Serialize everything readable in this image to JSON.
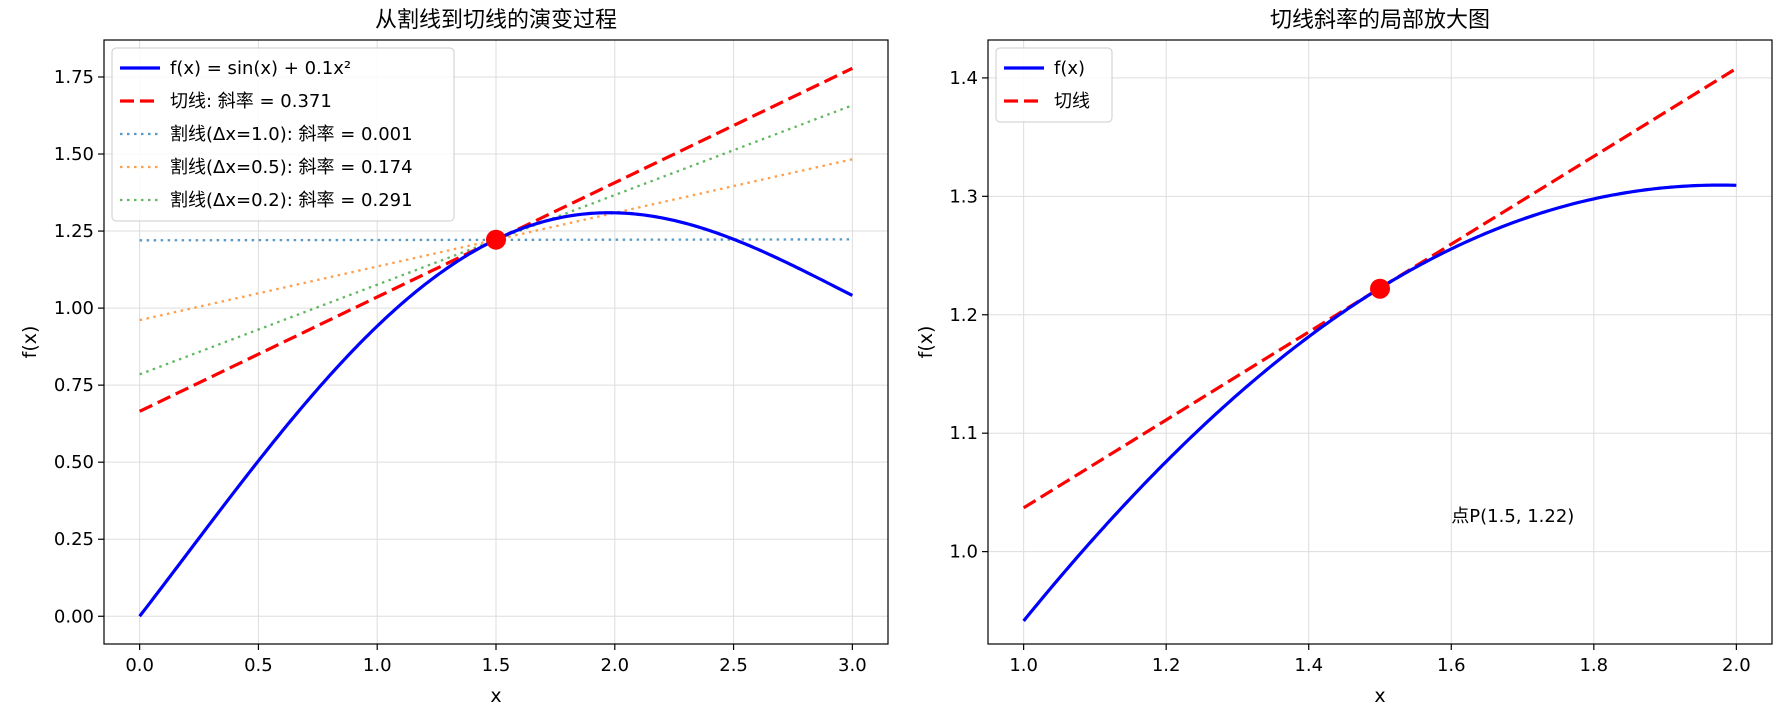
{
  "chart_data": [
    {
      "type": "line",
      "title": "从割线到切线的演变过程",
      "xlabel": "x",
      "ylabel": "f(x)",
      "xlim": [
        -0.15,
        3.15
      ],
      "ylim": [
        -0.09,
        1.87
      ],
      "xticks": [
        "0.0",
        "0.5",
        "1.0",
        "1.5",
        "2.0",
        "2.5",
        "3.0"
      ],
      "yticks": [
        "0.00",
        "0.25",
        "0.50",
        "0.75",
        "1.00",
        "1.25",
        "1.50",
        "1.75"
      ],
      "grid": true,
      "legend_position": "upper-left",
      "point": {
        "x": 1.5,
        "y": 1.222,
        "color": "#ff0000"
      },
      "series": [
        {
          "name": "f(x) = sin(x) + 0.1x²",
          "style": "solid",
          "color": "#0000ff",
          "function": "sin(x) + 0.1x²",
          "x_range": [
            0.0,
            3.0
          ]
        },
        {
          "name": "切线: 斜率 = 0.371",
          "style": "dashed",
          "color": "#ff0000",
          "x": [
            0.0,
            3.0
          ],
          "y": [
            0.665,
            1.778
          ]
        },
        {
          "name": "割线(Δx=1.0): 斜率 = 0.001",
          "style": "dotted",
          "color": "#1f77b4",
          "x": [
            0.0,
            3.0
          ],
          "y": [
            1.22,
            1.223
          ]
        },
        {
          "name": "割线(Δx=0.5): 斜率 = 0.174",
          "style": "dotted",
          "color": "#ff7f0e",
          "x": [
            0.0,
            3.0
          ],
          "y": [
            0.961,
            1.483
          ]
        },
        {
          "name": "割线(Δx=0.2): 斜率 = 0.291",
          "style": "dotted",
          "color": "#2ca02c",
          "x": [
            0.0,
            3.0
          ],
          "y": [
            0.785,
            1.658
          ]
        }
      ]
    },
    {
      "type": "line",
      "title": "切线斜率的局部放大图",
      "xlabel": "x",
      "ylabel": "f(x)",
      "xlim": [
        0.95,
        2.05
      ],
      "ylim": [
        0.922,
        1.432
      ],
      "xticks": [
        "1.0",
        "1.2",
        "1.4",
        "1.6",
        "1.8",
        "2.0"
      ],
      "yticks": [
        "1.0",
        "1.1",
        "1.2",
        "1.3",
        "1.4"
      ],
      "grid": true,
      "legend_position": "upper-left",
      "point": {
        "x": 1.5,
        "y": 1.222,
        "color": "#ff0000"
      },
      "annotation": {
        "text": "点P(1.5, 1.22)",
        "x": 1.6,
        "y": 1.025
      },
      "series": [
        {
          "name": "f(x)",
          "style": "solid",
          "color": "#0000ff",
          "function": "sin(x) + 0.1x²",
          "x_range": [
            1.0,
            2.0
          ]
        },
        {
          "name": "切线",
          "style": "dashed",
          "color": "#ff0000",
          "x": [
            1.0,
            2.0
          ],
          "y": [
            1.037,
            1.408
          ]
        }
      ]
    }
  ]
}
